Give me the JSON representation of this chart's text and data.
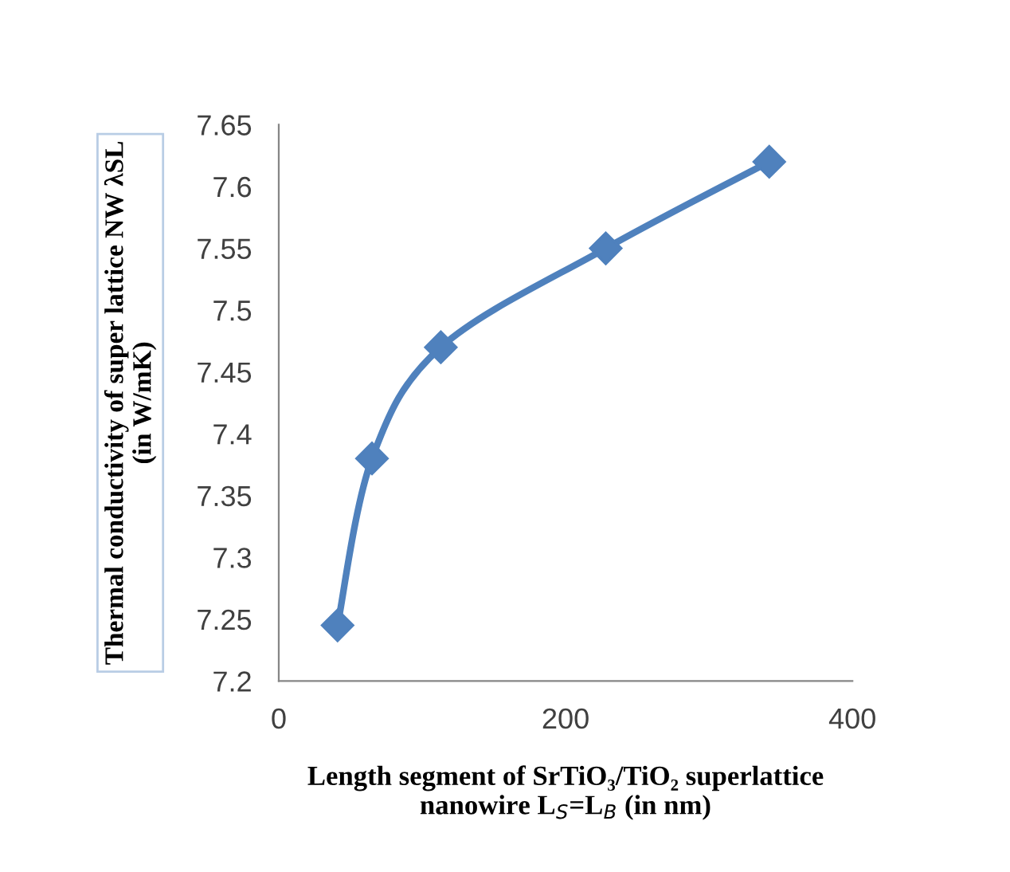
{
  "chart_data": {
    "type": "line",
    "xlabel": "Length segment of SrTiO₃/TiO₂ superlattice\nnanowire L$_{S}$=L$_{B}$ (in nm)",
    "ylabel": "Thermal conductivity of super lattice NW λSL\n(in W/mK)",
    "x": [
      41,
      65,
      113,
      228,
      342
    ],
    "series": [
      {
        "color": "#4f81bd",
        "values": [
          7.245,
          7.38,
          7.47,
          7.55,
          7.62
        ]
      }
    ],
    "xlim": [
      0,
      400
    ],
    "xticks": [
      0,
      200,
      400
    ],
    "ylim": [
      7.2,
      7.65
    ],
    "yticks": [
      7.2,
      7.25,
      7.3,
      7.35,
      7.4,
      7.45,
      7.5,
      7.55,
      7.6,
      7.65
    ],
    "marker": "diamond",
    "line_style": "solid",
    "grid": false,
    "legend": false
  }
}
